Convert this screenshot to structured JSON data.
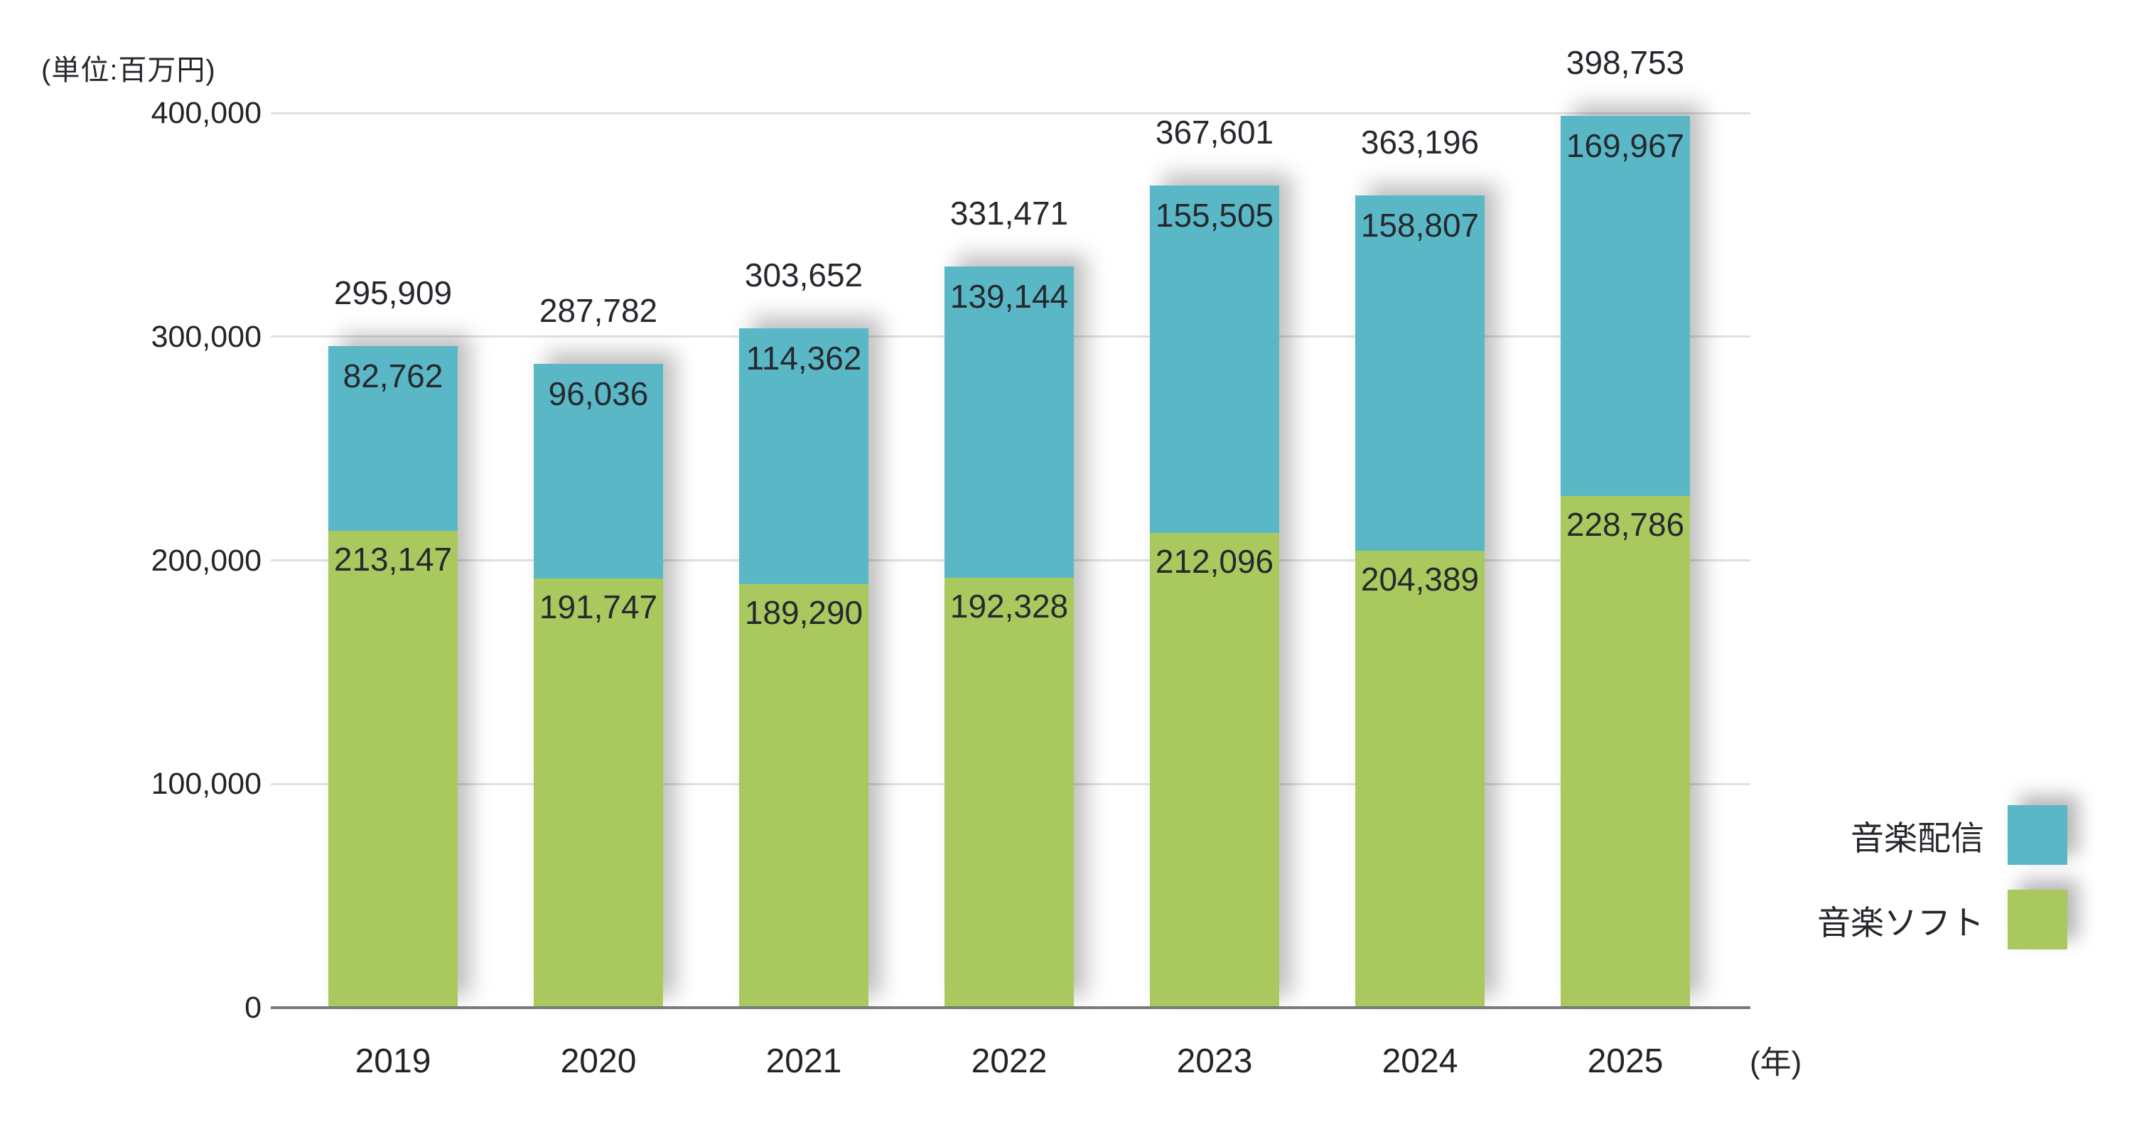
{
  "chart_data": {
    "type": "bar",
    "stacked": true,
    "title": "",
    "unit_label": "(単位:百万円)",
    "xaxis_suffix_label": "(年)",
    "categories": [
      "2019",
      "2020",
      "2021",
      "2022",
      "2023",
      "2024",
      "2025"
    ],
    "series": [
      {
        "name": "音楽配信",
        "color": "#5ab8c6",
        "values": [
          82762,
          96036,
          114362,
          139144,
          155505,
          158807,
          169967
        ]
      },
      {
        "name": "音楽ソフト",
        "color": "#a9c95e",
        "values": [
          213147,
          191747,
          189290,
          192328,
          212096,
          204389,
          228786
        ]
      }
    ],
    "totals": [
      295909,
      287782,
      303652,
      331471,
      367601,
      363196,
      398753
    ],
    "ylim": [
      0,
      400000
    ],
    "yticks": [
      0,
      100000,
      200000,
      300000,
      400000
    ],
    "ytick_labels": [
      "0",
      "100,000",
      "200,000",
      "300,000",
      "400,000"
    ],
    "grid": true,
    "legend_position": "right-bottom",
    "background_color": "#ffffff",
    "gridline_color": "#e1e1e1",
    "axis_line_color": "#7a7a7a",
    "label_text_color": "#26282e"
  }
}
